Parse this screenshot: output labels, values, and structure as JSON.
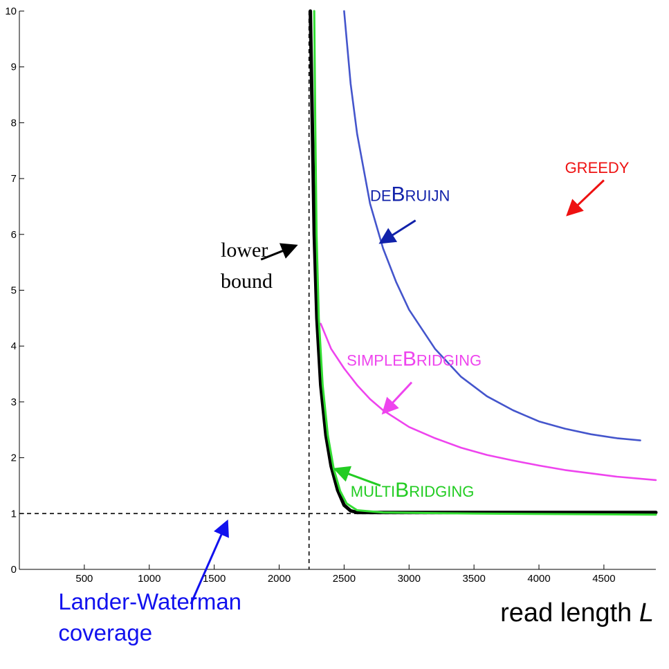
{
  "chart_data": {
    "type": "line",
    "title": "",
    "xlabel": "read length L",
    "ylabel": "",
    "xlim": [
      0,
      4900
    ],
    "ylim": [
      0,
      10
    ],
    "grid": false,
    "x_ticks": [
      500,
      1000,
      1500,
      2000,
      2500,
      3000,
      3500,
      4000,
      4500
    ],
    "y_ticks": [
      0,
      1,
      2,
      3,
      4,
      5,
      6,
      7,
      8,
      9,
      10
    ],
    "reference_lines": [
      {
        "orientation": "vertical",
        "x": 2230,
        "style": "dashed"
      },
      {
        "orientation": "horizontal",
        "y": 1,
        "style": "dashed"
      }
    ],
    "series": [
      {
        "color": "#4455cc",
        "points": [
          [
            2500,
            10.0
          ],
          [
            2550,
            8.7
          ],
          [
            2600,
            7.8
          ],
          [
            2700,
            6.55
          ],
          [
            2800,
            5.75
          ],
          [
            2900,
            5.15
          ],
          [
            3000,
            4.65
          ],
          [
            3200,
            3.95
          ],
          [
            3400,
            3.45
          ],
          [
            3600,
            3.1
          ],
          [
            3800,
            2.85
          ],
          [
            4000,
            2.65
          ],
          [
            4200,
            2.52
          ],
          [
            4400,
            2.42
          ],
          [
            4600,
            2.35
          ],
          [
            4780,
            2.31
          ]
        ]
      },
      {
        "color": "#ee44ee",
        "points": [
          [
            2320,
            4.4
          ],
          [
            2400,
            3.95
          ],
          [
            2500,
            3.6
          ],
          [
            2600,
            3.3
          ],
          [
            2700,
            3.05
          ],
          [
            2800,
            2.85
          ],
          [
            3000,
            2.55
          ],
          [
            3200,
            2.35
          ],
          [
            3400,
            2.18
          ],
          [
            3600,
            2.05
          ],
          [
            3800,
            1.95
          ],
          [
            4000,
            1.86
          ],
          [
            4200,
            1.78
          ],
          [
            4400,
            1.72
          ],
          [
            4600,
            1.66
          ],
          [
            4900,
            1.6
          ]
        ]
      },
      {
        "color": "#000000",
        "points": [
          [
            2240,
            10.0
          ],
          [
            2255,
            8.0
          ],
          [
            2270,
            6.0
          ],
          [
            2290,
            4.5
          ],
          [
            2320,
            3.3
          ],
          [
            2360,
            2.4
          ],
          [
            2400,
            1.85
          ],
          [
            2450,
            1.42
          ],
          [
            2500,
            1.15
          ],
          [
            2550,
            1.05
          ],
          [
            2600,
            1.02
          ],
          [
            3000,
            1.02
          ],
          [
            4000,
            1.02
          ],
          [
            4900,
            1.02
          ]
        ]
      },
      {
        "color": "#33dd33",
        "points": [
          [
            2270,
            10.0
          ],
          [
            2278,
            8.0
          ],
          [
            2288,
            6.0
          ],
          [
            2305,
            4.5
          ],
          [
            2335,
            3.3
          ],
          [
            2375,
            2.4
          ],
          [
            2420,
            1.8
          ],
          [
            2470,
            1.4
          ],
          [
            2520,
            1.18
          ],
          [
            2600,
            1.06
          ],
          [
            2800,
            1.02
          ],
          [
            3500,
            1.0
          ],
          [
            4900,
            0.98
          ]
        ]
      }
    ],
    "annotations": [
      {
        "text": "lower\nbound",
        "color": "#000000",
        "font": "serif",
        "text_x": 1550,
        "text_y": 5.6,
        "arrow_from": [
          1860,
          5.55
        ],
        "arrow_to": [
          2130,
          5.8
        ]
      },
      {
        "text": "DEBRUIJN",
        "color": "#1122aa",
        "font": "small-caps",
        "text_x": 2700,
        "text_y": 6.6,
        "arrow_from": [
          3050,
          6.25
        ],
        "arrow_to": [
          2780,
          5.85
        ]
      },
      {
        "text": "GREEDY",
        "color": "#ee1111",
        "font": "sans",
        "text_x": 4200,
        "text_y": 7.1,
        "arrow_from": [
          4500,
          6.97
        ],
        "arrow_to": [
          4220,
          6.35
        ]
      },
      {
        "text": "SIMPLEBRIDGING",
        "color": "#ee44ee",
        "font": "small-caps",
        "text_x": 2520,
        "text_y": 3.65,
        "arrow_from": [
          3020,
          3.35
        ],
        "arrow_to": [
          2800,
          2.8
        ]
      },
      {
        "text": "MULTIBRIDGING",
        "color": "#22cc22",
        "font": "small-caps",
        "text_x": 2550,
        "text_y": 1.3,
        "arrow_from": [
          2780,
          1.5
        ],
        "arrow_to": [
          2430,
          1.8
        ]
      },
      {
        "text": "Lander-Waterman\ncoverage",
        "color": "#1111ee",
        "font": "sans",
        "text_x": 300,
        "text_y": -0.72,
        "arrow_from": [
          1320,
          -0.62
        ],
        "arrow_to": [
          1600,
          0.86
        ]
      }
    ]
  }
}
